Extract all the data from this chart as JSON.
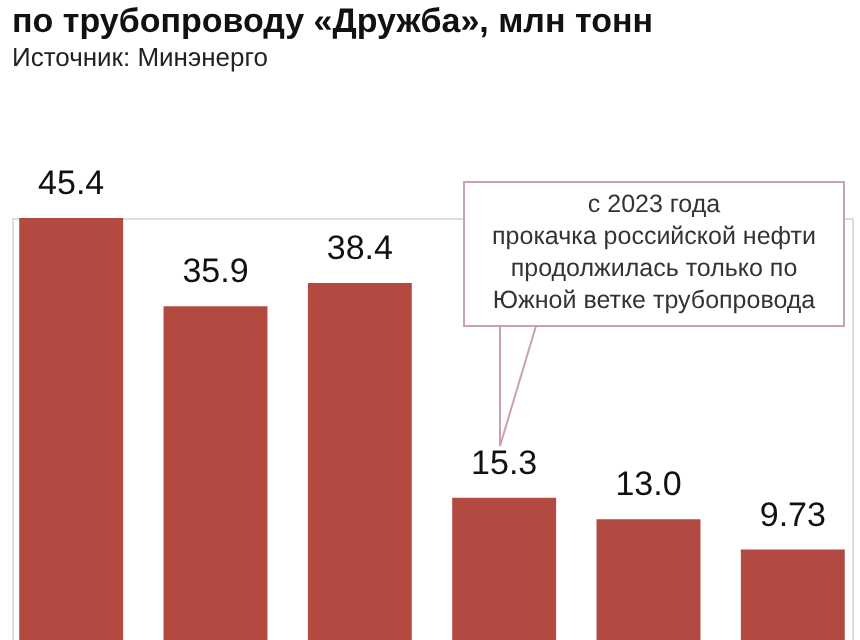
{
  "chart_data": {
    "type": "bar",
    "title": "по трубопроводу «Дружба», млн тонн",
    "subtitle": "Источник: Минэнерго",
    "categories": [
      null,
      null,
      null,
      null,
      null,
      null
    ],
    "values": [
      45.4,
      35.9,
      38.4,
      15.3,
      13.0,
      9.73
    ],
    "value_labels": [
      "45.4",
      "35.9",
      "38.4",
      "15.3",
      "13.0",
      "9.73"
    ],
    "color": "#b34a42",
    "annotations": [
      "с 2023 года\nпрокачка российской нефти\nпродолжилась только по\nЮжной ветке трубопровода"
    ]
  }
}
